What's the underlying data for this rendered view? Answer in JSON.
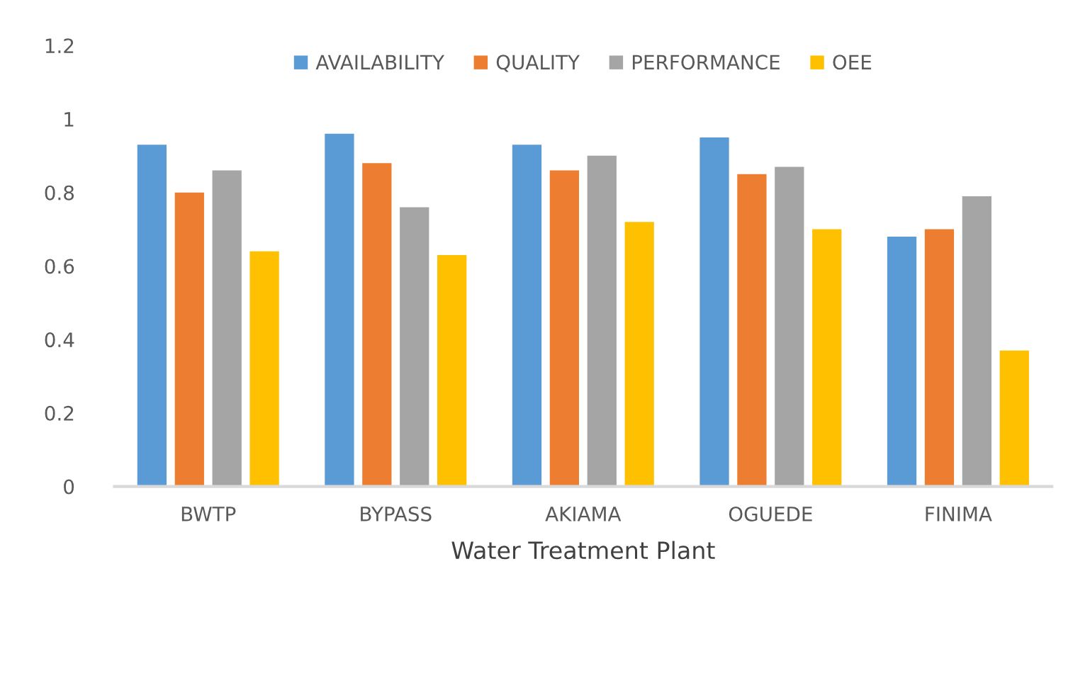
{
  "chart_data": {
    "type": "bar",
    "xlabel": "Water Treatment Plant",
    "categories": [
      "BWTP",
      "BYPASS",
      "AKIAMA",
      "OGUEDE",
      "FINIMA"
    ],
    "series": [
      {
        "name": "AVAILABILITY",
        "color": "#5b9bd5",
        "values": [
          0.93,
          0.96,
          0.93,
          0.95,
          0.68
        ]
      },
      {
        "name": "QUALITY",
        "color": "#ed7d31",
        "values": [
          0.8,
          0.88,
          0.86,
          0.85,
          0.7
        ]
      },
      {
        "name": "PERFORMANCE",
        "color": "#a5a5a5",
        "values": [
          0.86,
          0.76,
          0.9,
          0.87,
          0.79
        ]
      },
      {
        "name": "OEE",
        "color": "#ffc000",
        "values": [
          0.64,
          0.63,
          0.72,
          0.7,
          0.37
        ]
      }
    ],
    "ylim": [
      0,
      1.2
    ],
    "yticks": [
      0,
      0.2,
      0.4,
      0.6,
      0.8,
      1,
      1.2
    ],
    "grid": false,
    "legend": "top"
  }
}
